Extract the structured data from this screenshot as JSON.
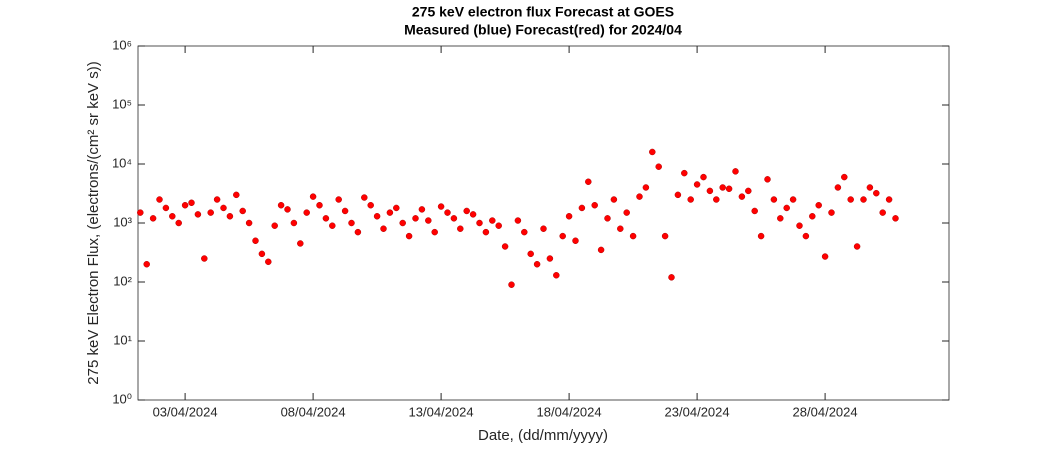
{
  "chart_data": {
    "type": "scatter",
    "title": "275 keV electron flux Forecast at GOES",
    "subtitle": "Measured (blue) Forecast(red) for 2024/04",
    "x_label": "Date, (dd/mm/yyyy)",
    "y_label": "275 keV Electron Flux, (electrons/(cm² sr keV s))",
    "log_y": true,
    "xlim": [
      1.16,
      32.84
    ],
    "ylim": [
      1,
      1000000
    ],
    "xticks": [
      {
        "value": 3,
        "label": "03/04/2024"
      },
      {
        "value": 8,
        "label": "08/04/2024"
      },
      {
        "value": 13,
        "label": "13/04/2024"
      },
      {
        "value": 18,
        "label": "18/04/2024"
      },
      {
        "value": 23,
        "label": "23/04/2024"
      },
      {
        "value": 28,
        "label": "28/04/2024"
      }
    ],
    "yticks": [
      {
        "value": 1,
        "label": "10⁰"
      },
      {
        "value": 10,
        "label": "10¹"
      },
      {
        "value": 100,
        "label": "10²"
      },
      {
        "value": 1000,
        "label": "10³"
      },
      {
        "value": 10000,
        "label": "10⁴"
      },
      {
        "value": 100000,
        "label": "10⁵"
      },
      {
        "value": 1000000,
        "label": "10⁶"
      }
    ],
    "series": [
      {
        "color": "#ff0000",
        "x": [
          1.25,
          1.5,
          1.75,
          2,
          2.25,
          2.5,
          2.75,
          3,
          3.25,
          3.5,
          3.75,
          4,
          4.25,
          4.5,
          4.75,
          5,
          5.25,
          5.5,
          5.75,
          6,
          6.25,
          6.5,
          6.75,
          7,
          7.25,
          7.5,
          7.75,
          8,
          8.25,
          8.5,
          8.75,
          9,
          9.25,
          9.5,
          9.75,
          10,
          10.25,
          10.5,
          10.75,
          11,
          11.25,
          11.5,
          11.75,
          12,
          12.25,
          12.5,
          12.75,
          13,
          13.25,
          13.5,
          13.75,
          14,
          14.25,
          14.5,
          14.75,
          15,
          15.25,
          15.5,
          15.75,
          16,
          16.25,
          16.5,
          16.75,
          17,
          17.25,
          17.5,
          17.75,
          18,
          18.25,
          18.5,
          18.75,
          19,
          19.25,
          19.5,
          19.75,
          20,
          20.25,
          20.5,
          20.75,
          21,
          21.25,
          21.5,
          21.75,
          22,
          22.25,
          22.5,
          22.75,
          23,
          23.25,
          23.5,
          23.75,
          24,
          24.25,
          24.5,
          24.75,
          25,
          25.25,
          25.5,
          25.75,
          26,
          26.25,
          26.5,
          26.75,
          27,
          27.25,
          27.5,
          27.75,
          28,
          28.25,
          28.5,
          28.75,
          29,
          29.25,
          29.5,
          29.75,
          30,
          30.25,
          30.5,
          30.75
        ],
        "values": [
          1500,
          200,
          1200,
          2500,
          1800,
          1300,
          1000,
          2000,
          2200,
          1400,
          250,
          1500,
          2500,
          1800,
          1300,
          3000,
          1600,
          1000,
          500,
          300,
          220,
          900,
          2000,
          1700,
          1000,
          450,
          1500,
          2800,
          2000,
          1200,
          900,
          2500,
          1600,
          1000,
          700,
          2700,
          2000,
          1300,
          800,
          1500,
          1800,
          1000,
          600,
          1200,
          1700,
          1100,
          700,
          1900,
          1500,
          1200,
          800,
          1600,
          1400,
          1000,
          700,
          1100,
          900,
          400,
          90,
          1100,
          700,
          300,
          200,
          800,
          250,
          130,
          600,
          1300,
          500,
          1800,
          5000,
          2000,
          350,
          1200,
          2500,
          800,
          1500,
          600,
          2800,
          4000,
          16000,
          9000,
          600,
          120,
          3000,
          7000,
          2500,
          4500,
          6000,
          3500,
          2500,
          4000,
          3800,
          7500,
          2800,
          3500,
          1600,
          600,
          5500,
          2500,
          1200,
          1800,
          2500,
          900,
          600,
          1300,
          2000,
          270,
          1500,
          4000,
          6000,
          2500,
          400,
          2500,
          4000,
          3200,
          1500,
          2500,
          1200
        ]
      }
    ]
  }
}
